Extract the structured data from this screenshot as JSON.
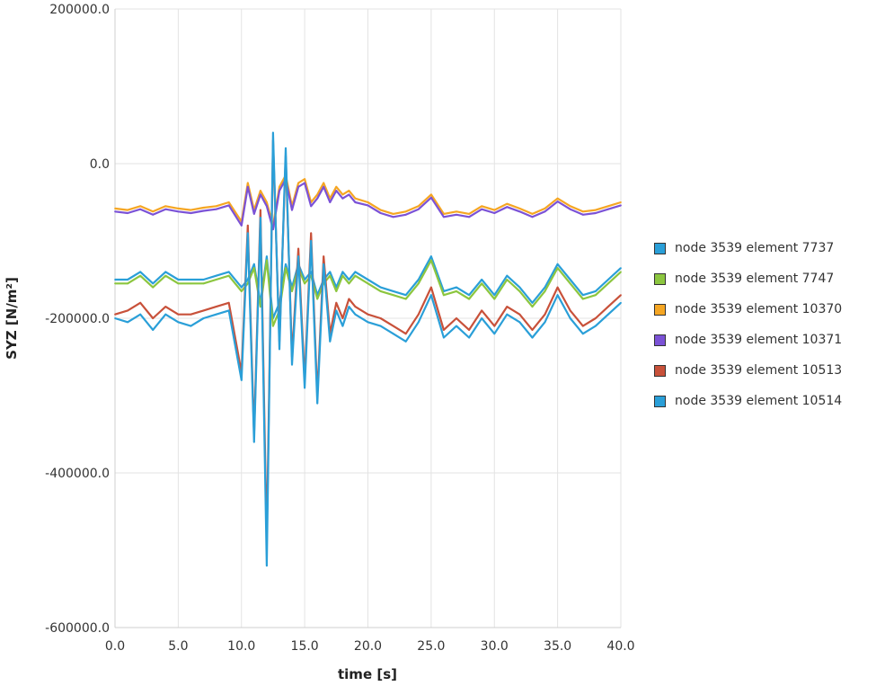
{
  "chart_data": {
    "type": "line",
    "title": "",
    "xlabel": "time [s]",
    "ylabel": "SYZ [N/m²]",
    "xlim": [
      0,
      40
    ],
    "ylim": [
      -600000,
      200000
    ],
    "x_ticks": [
      "0.0",
      "5.0",
      "10.0",
      "15.0",
      "20.0",
      "25.0",
      "30.0",
      "35.0",
      "40.0"
    ],
    "y_ticks": [
      "200000.0",
      "0.0",
      "-200000.0",
      "-400000.0",
      "-600000.0"
    ],
    "grid": true,
    "legend_position": "right",
    "series": [
      {
        "name": "node 3539 element 7737",
        "color": "#2a9fd8",
        "x": [
          0,
          1,
          2,
          3,
          4,
          5,
          6,
          7,
          8,
          9,
          10,
          10.5,
          11,
          11.5,
          12,
          12.5,
          13,
          13.5,
          14,
          14.5,
          15,
          15.5,
          16,
          16.5,
          17,
          17.5,
          18,
          18.5,
          19,
          20,
          21,
          22,
          23,
          24,
          25,
          26,
          27,
          28,
          29,
          30,
          31,
          32,
          33,
          34,
          35,
          36,
          37,
          38,
          39,
          40
        ],
        "y": [
          -150000,
          -150000,
          -140000,
          -155000,
          -140000,
          -150000,
          -150000,
          -150000,
          -145000,
          -140000,
          -160000,
          -150000,
          -130000,
          -180000,
          -120000,
          -200000,
          -180000,
          -130000,
          -160000,
          -130000,
          -150000,
          -140000,
          -170000,
          -150000,
          -140000,
          -160000,
          -140000,
          -150000,
          -140000,
          -150000,
          -160000,
          -165000,
          -170000,
          -150000,
          -120000,
          -165000,
          -160000,
          -170000,
          -150000,
          -170000,
          -145000,
          -160000,
          -180000,
          -160000,
          -130000,
          -150000,
          -170000,
          -165000,
          -150000,
          -135000
        ]
      },
      {
        "name": "node 3539 element 7747",
        "color": "#8cc63f",
        "x": [
          0,
          1,
          2,
          3,
          4,
          5,
          6,
          7,
          8,
          9,
          10,
          10.5,
          11,
          11.5,
          12,
          12.5,
          13,
          13.5,
          14,
          14.5,
          15,
          15.5,
          16,
          16.5,
          17,
          17.5,
          18,
          18.5,
          19,
          20,
          21,
          22,
          23,
          24,
          25,
          26,
          27,
          28,
          29,
          30,
          31,
          32,
          33,
          34,
          35,
          36,
          37,
          38,
          39,
          40
        ],
        "y": [
          -155000,
          -155000,
          -145000,
          -160000,
          -145000,
          -155000,
          -155000,
          -155000,
          -150000,
          -145000,
          -165000,
          -155000,
          -135000,
          -185000,
          -125000,
          -210000,
          -190000,
          -135000,
          -165000,
          -135000,
          -155000,
          -145000,
          -175000,
          -155000,
          -145000,
          -165000,
          -145000,
          -155000,
          -145000,
          -155000,
          -165000,
          -170000,
          -175000,
          -155000,
          -125000,
          -170000,
          -165000,
          -175000,
          -155000,
          -175000,
          -150000,
          -165000,
          -185000,
          -165000,
          -135000,
          -155000,
          -175000,
          -170000,
          -155000,
          -140000
        ]
      },
      {
        "name": "node 3539 element 10370",
        "color": "#f5a623",
        "x": [
          0,
          1,
          2,
          3,
          4,
          5,
          6,
          7,
          8,
          9,
          10,
          10.5,
          11,
          11.5,
          12,
          12.5,
          13,
          13.5,
          14,
          14.5,
          15,
          15.5,
          16,
          16.5,
          17,
          17.5,
          18,
          18.5,
          19,
          20,
          21,
          22,
          23,
          24,
          25,
          26,
          27,
          28,
          29,
          30,
          31,
          32,
          33,
          34,
          35,
          36,
          37,
          38,
          39,
          40
        ],
        "y": [
          -58000,
          -60000,
          -55000,
          -62000,
          -55000,
          -58000,
          -60000,
          -57000,
          -55000,
          -50000,
          -75000,
          -25000,
          -60000,
          -35000,
          -50000,
          -80000,
          -30000,
          -15000,
          -55000,
          -25000,
          -20000,
          -50000,
          -40000,
          -25000,
          -45000,
          -30000,
          -40000,
          -35000,
          -45000,
          -50000,
          -60000,
          -65000,
          -62000,
          -55000,
          -40000,
          -65000,
          -62000,
          -65000,
          -55000,
          -60000,
          -52000,
          -58000,
          -65000,
          -58000,
          -45000,
          -55000,
          -62000,
          -60000,
          -55000,
          -50000
        ]
      },
      {
        "name": "node 3539 element 10371",
        "color": "#7b52d6",
        "x": [
          0,
          1,
          2,
          3,
          4,
          5,
          6,
          7,
          8,
          9,
          10,
          10.5,
          11,
          11.5,
          12,
          12.5,
          13,
          13.5,
          14,
          14.5,
          15,
          15.5,
          16,
          16.5,
          17,
          17.5,
          18,
          18.5,
          19,
          20,
          21,
          22,
          23,
          24,
          25,
          26,
          27,
          28,
          29,
          30,
          31,
          32,
          33,
          34,
          35,
          36,
          37,
          38,
          39,
          40
        ],
        "y": [
          -62000,
          -64000,
          -59000,
          -66000,
          -59000,
          -62000,
          -64000,
          -61000,
          -59000,
          -54000,
          -80000,
          -30000,
          -65000,
          -40000,
          -55000,
          -85000,
          -35000,
          -20000,
          -60000,
          -30000,
          -25000,
          -55000,
          -45000,
          -30000,
          -50000,
          -35000,
          -45000,
          -40000,
          -50000,
          -54000,
          -64000,
          -69000,
          -66000,
          -59000,
          -44000,
          -69000,
          -66000,
          -69000,
          -59000,
          -64000,
          -56000,
          -62000,
          -69000,
          -62000,
          -49000,
          -59000,
          -66000,
          -64000,
          -59000,
          -54000
        ]
      },
      {
        "name": "node 3539 element 10513",
        "color": "#c8513a",
        "x": [
          0,
          1,
          2,
          3,
          4,
          5,
          6,
          7,
          8,
          9,
          10,
          10.5,
          11,
          11.5,
          12,
          12.5,
          13,
          13.5,
          14,
          14.5,
          15,
          15.5,
          16,
          16.5,
          17,
          17.5,
          18,
          18.5,
          19,
          20,
          21,
          22,
          23,
          24,
          25,
          26,
          27,
          28,
          29,
          30,
          31,
          32,
          33,
          34,
          35,
          36,
          37,
          38,
          39,
          40
        ],
        "y": [
          -195000,
          -190000,
          -180000,
          -200000,
          -185000,
          -195000,
          -195000,
          -190000,
          -185000,
          -180000,
          -270000,
          -80000,
          -350000,
          -60000,
          -490000,
          30000,
          -230000,
          10000,
          -250000,
          -110000,
          -280000,
          -90000,
          -300000,
          -120000,
          -220000,
          -180000,
          -200000,
          -175000,
          -185000,
          -195000,
          -200000,
          -210000,
          -220000,
          -195000,
          -160000,
          -215000,
          -200000,
          -215000,
          -190000,
          -210000,
          -185000,
          -195000,
          -215000,
          -195000,
          -160000,
          -190000,
          -210000,
          -200000,
          -185000,
          -170000
        ]
      },
      {
        "name": "node 3539 element 10514",
        "color": "#2a9fd8",
        "x": [
          0,
          1,
          2,
          3,
          4,
          5,
          6,
          7,
          8,
          9,
          10,
          10.5,
          11,
          11.5,
          12,
          12.5,
          13,
          13.5,
          14,
          14.5,
          15,
          15.5,
          16,
          16.5,
          17,
          17.5,
          18,
          18.5,
          19,
          20,
          21,
          22,
          23,
          24,
          25,
          26,
          27,
          28,
          29,
          30,
          31,
          32,
          33,
          34,
          35,
          36,
          37,
          38,
          39,
          40
        ],
        "y": [
          -200000,
          -205000,
          -195000,
          -215000,
          -195000,
          -205000,
          -210000,
          -200000,
          -195000,
          -190000,
          -280000,
          -90000,
          -360000,
          -70000,
          -520000,
          40000,
          -240000,
          20000,
          -260000,
          -120000,
          -290000,
          -100000,
          -310000,
          -130000,
          -230000,
          -190000,
          -210000,
          -185000,
          -195000,
          -205000,
          -210000,
          -220000,
          -230000,
          -205000,
          -170000,
          -225000,
          -210000,
          -225000,
          -200000,
          -220000,
          -195000,
          -205000,
          -225000,
          -205000,
          -170000,
          -200000,
          -220000,
          -210000,
          -195000,
          -180000
        ]
      }
    ]
  }
}
